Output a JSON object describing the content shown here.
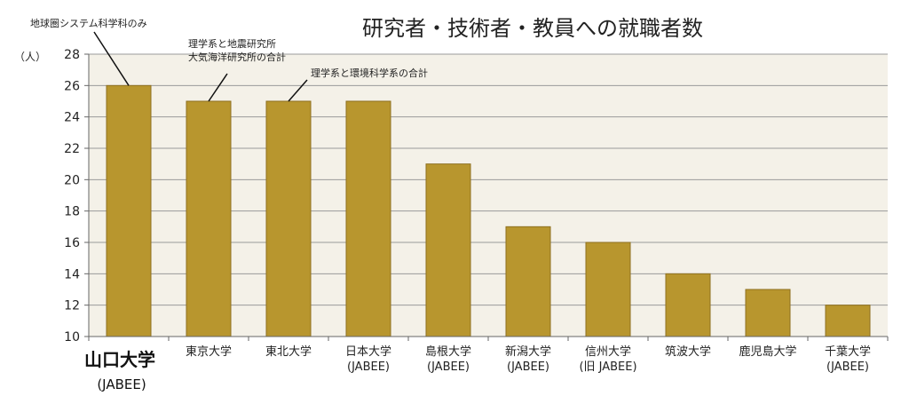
{
  "chart_data": {
    "type": "bar",
    "title": "研究者・技術者・教員への就職者数",
    "ylabel": "（人）",
    "ylim": [
      10,
      28
    ],
    "yticks": [
      10,
      12,
      14,
      16,
      18,
      20,
      22,
      24,
      26,
      28
    ],
    "grid": true,
    "categories": [
      {
        "name": "山口大学",
        "sub": "(JABEE)",
        "highlight": true
      },
      {
        "name": "東京大学",
        "sub": ""
      },
      {
        "name": "東北大学",
        "sub": ""
      },
      {
        "name": "日本大学",
        "sub": "(JABEE)"
      },
      {
        "name": "島根大学",
        "sub": "(JABEE)"
      },
      {
        "name": "新潟大学",
        "sub": "(JABEE)"
      },
      {
        "name": "信州大学",
        "sub": "(旧 JABEE)"
      },
      {
        "name": "筑波大学",
        "sub": ""
      },
      {
        "name": "鹿児島大学",
        "sub": ""
      },
      {
        "name": "千葉大学",
        "sub": "(JABEE)"
      }
    ],
    "values": [
      26,
      25,
      25,
      25,
      21,
      17,
      16,
      14,
      13,
      12
    ],
    "colors": {
      "bar": "#B8962E",
      "bar_stroke": "#8E7020",
      "plot_bg": "#F4F1E8",
      "grid": "#9A9A9A"
    },
    "annotations": [
      {
        "bar_index": 0,
        "lines": [
          "地球圏システム科学科のみ"
        ]
      },
      {
        "bar_index": 1,
        "lines": [
          "理学系と地震研究所",
          "大気海洋研究所の合計"
        ]
      },
      {
        "bar_index": 2,
        "lines": [
          "理学系と環境科学系の合計"
        ]
      }
    ]
  }
}
